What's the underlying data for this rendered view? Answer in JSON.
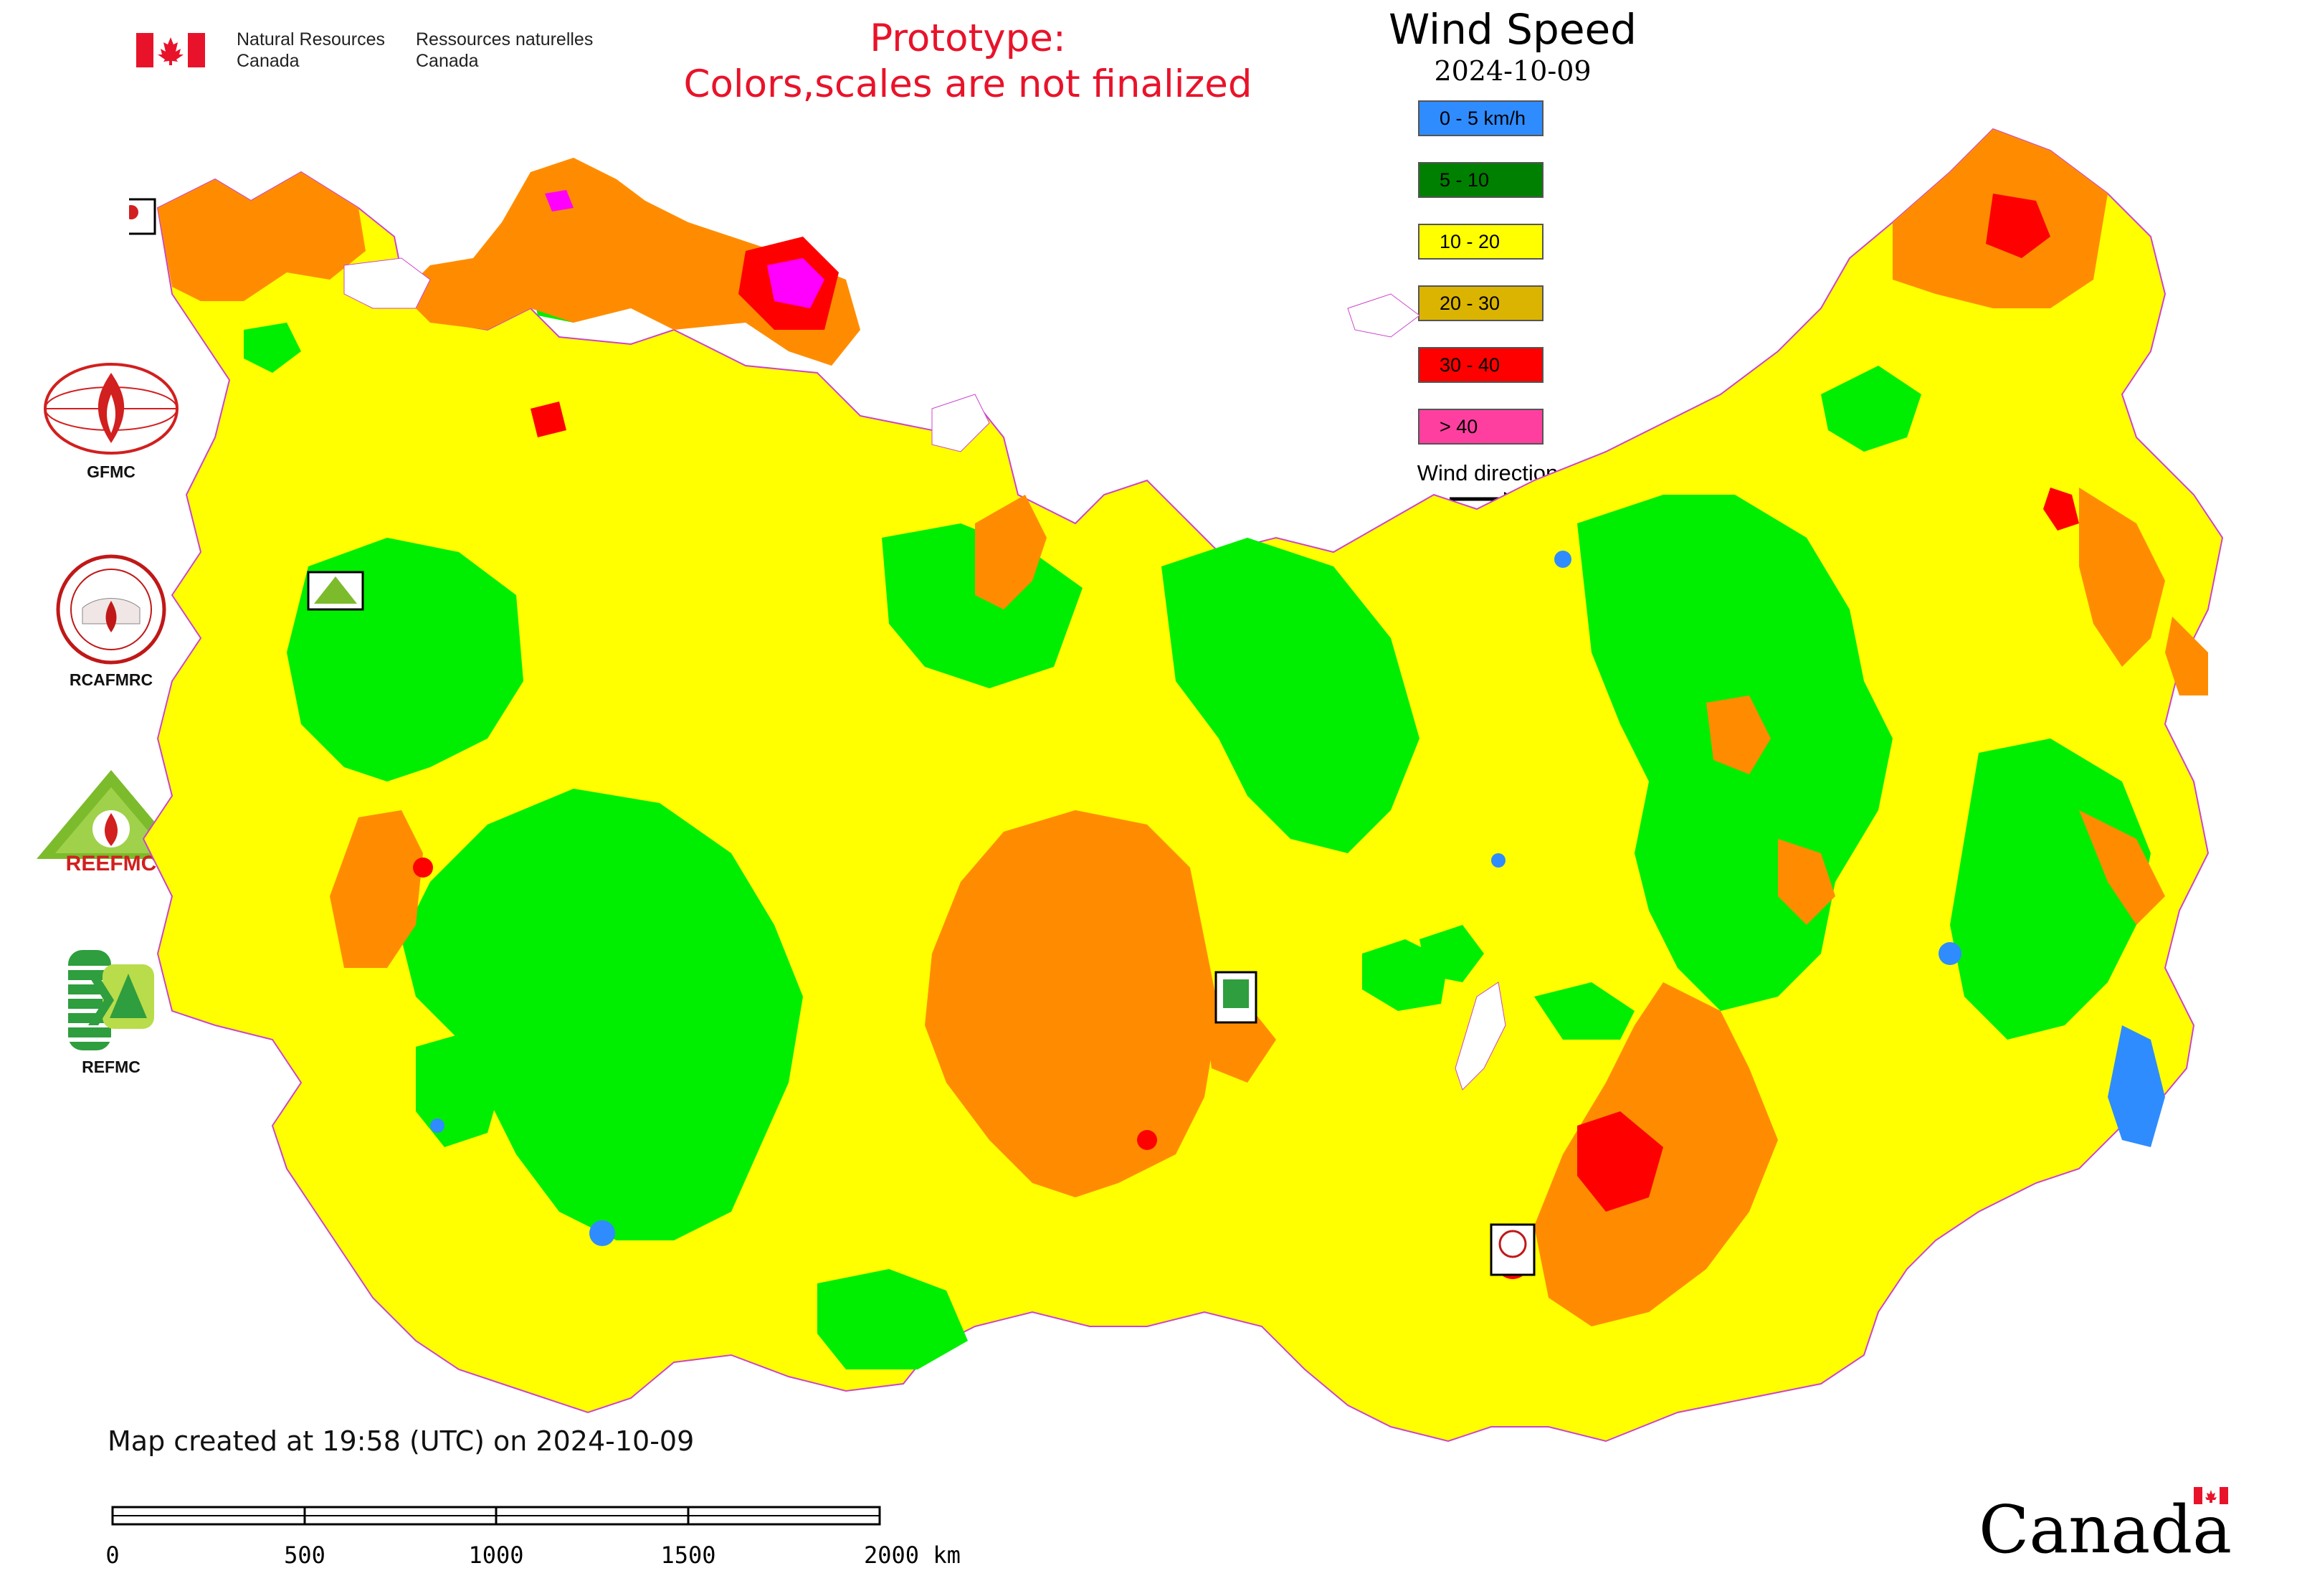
{
  "header": {
    "org_en": "Natural Resources\nCanada",
    "org_fr": "Ressources naturelles\nCanada",
    "prototype_line1": "Prototype:",
    "prototype_line2": "Colors,scales are not finalized"
  },
  "legend": {
    "title": "Wind Speed",
    "date": "2024-10-09",
    "classes": [
      {
        "label": "0 - 5 km/h",
        "color": "#2f8cff"
      },
      {
        "label": "5 - 10",
        "color": "#008000"
      },
      {
        "label": "10 - 20",
        "color": "#ffff00"
      },
      {
        "label": "20 - 30",
        "color": "#dab400"
      },
      {
        "label": "30 - 40",
        "color": "#ff0000"
      },
      {
        "label": "> 40",
        "color": "#ff3fa0"
      }
    ],
    "wind_direction_label": "Wind direction"
  },
  "logos": [
    {
      "caption": "GFMC",
      "icon": "gfmc-logo"
    },
    {
      "caption": "RCAFMRC",
      "icon": "rcafmrc-logo"
    },
    {
      "caption": "",
      "icon": "reefmc-logo",
      "wordmark": "REEFMC"
    },
    {
      "caption": "REFMC",
      "icon": "refmc-logo"
    }
  ],
  "map": {
    "region_colors": {
      "sea": "#ffffff",
      "low_wind": "#00ee00",
      "moderate": "#ffff00",
      "strong": "#ff8c00",
      "very_strong": "#ff0000",
      "extreme": "#ff00ff",
      "calm": "#2f8cff",
      "borders": "#cc44cc"
    },
    "station_markers": [
      {
        "label": "GFMC",
        "icon": "gfmc-logo"
      },
      {
        "label": "REEFMC",
        "icon": "reefmc-logo"
      },
      {
        "label": "REFMC",
        "icon": "refmc-logo"
      },
      {
        "label": "RCAFMRC",
        "icon": "rcafmrc-logo"
      }
    ]
  },
  "footer": {
    "created": "Map created at 19:58 (UTC) on 2024-10-09",
    "scale_ticks": [
      "0",
      "500",
      "1000",
      "1500",
      "2000 km"
    ],
    "wordmark": "Canada"
  }
}
